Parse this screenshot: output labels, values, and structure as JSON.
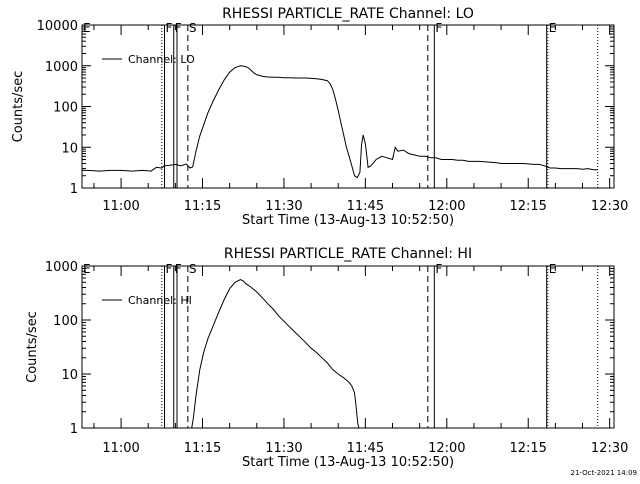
{
  "footer": {
    "timestamp": "21-Oct-2021 14:09"
  },
  "chart_data": [
    {
      "type": "line",
      "title": "RHESSI PARTICLE_RATE Channel: LO",
      "xlabel": "Start Time (13-Aug-13 10:52:50)",
      "ylabel": "Counts/sec",
      "yscale": "log",
      "ylim": [
        1,
        10000
      ],
      "xlim": [
        652.8,
        750.8
      ],
      "x_unit": "minutes after 00:00 UT",
      "x_ticks": [
        660,
        675,
        690,
        705,
        720,
        735,
        750
      ],
      "x_tick_labels": [
        "11:00",
        "11:15",
        "11:30",
        "11:45",
        "12:00",
        "12:15",
        "12:30"
      ],
      "y_ticks": [
        1,
        10,
        100,
        1000,
        10000
      ],
      "y_tick_labels": [
        "1",
        "10",
        "100",
        "1000",
        "10000"
      ],
      "legend": {
        "label": "Channel: LO",
        "position": "top-left"
      },
      "markers": [
        {
          "x": 652.8,
          "label": "E",
          "style": "dotted"
        },
        {
          "x": 667.5,
          "label": "",
          "style": "dotted"
        },
        {
          "x": 668.0,
          "label": "F",
          "style": "solid"
        },
        {
          "x": 669.7,
          "label": "F",
          "style": "solid"
        },
        {
          "x": 670.3,
          "label": "",
          "style": "solid"
        },
        {
          "x": 672.3,
          "label": "S",
          "style": "dashed"
        },
        {
          "x": 716.5,
          "label": "",
          "style": "dashed"
        },
        {
          "x": 717.7,
          "label": "F",
          "style": "solid"
        },
        {
          "x": 738.4,
          "label": "",
          "style": "solid"
        },
        {
          "x": 738.6,
          "label": "E",
          "style": "dotted"
        },
        {
          "x": 747.8,
          "label": "",
          "style": "dotted"
        }
      ],
      "series": [
        {
          "name": "Channel: LO",
          "points": [
            [
              652.8,
              2.7
            ],
            [
              654,
              2.7
            ],
            [
              656,
              2.6
            ],
            [
              658,
              2.7
            ],
            [
              660,
              2.7
            ],
            [
              662,
              2.6
            ],
            [
              664,
              2.7
            ],
            [
              665.5,
              2.6
            ],
            [
              666.5,
              3.2
            ],
            [
              667.5,
              3.1
            ],
            [
              668,
              3.5
            ],
            [
              669,
              3.6
            ],
            [
              670,
              3.8
            ],
            [
              671,
              3.5
            ],
            [
              672,
              3.9
            ],
            [
              672.7,
              3.1
            ],
            [
              673.2,
              3.3
            ],
            [
              673.8,
              8
            ],
            [
              674.5,
              19
            ],
            [
              675.2,
              35
            ],
            [
              676,
              70
            ],
            [
              677,
              140
            ],
            [
              678,
              260
            ],
            [
              679,
              450
            ],
            [
              680,
              700
            ],
            [
              681,
              900
            ],
            [
              681.5,
              950
            ],
            [
              682,
              1000
            ],
            [
              682.5,
              980
            ],
            [
              683,
              950
            ],
            [
              683.5,
              880
            ],
            [
              684,
              760
            ],
            [
              684.5,
              660
            ],
            [
              685,
              600
            ],
            [
              685.5,
              580
            ],
            [
              686,
              550
            ],
            [
              687,
              530
            ],
            [
              688,
              520
            ],
            [
              689,
              520
            ],
            [
              690,
              510
            ],
            [
              691,
              510
            ],
            [
              692,
              500
            ],
            [
              693,
              500
            ],
            [
              694,
              500
            ],
            [
              695,
              490
            ],
            [
              696,
              480
            ],
            [
              697,
              460
            ],
            [
              698,
              430
            ],
            [
              698.5,
              360
            ],
            [
              699,
              260
            ],
            [
              699.5,
              150
            ],
            [
              700,
              80
            ],
            [
              700.5,
              40
            ],
            [
              701,
              20
            ],
            [
              701.5,
              10
            ],
            [
              702,
              6
            ],
            [
              702.5,
              3.5
            ],
            [
              703,
              2
            ],
            [
              703.5,
              1.8
            ],
            [
              704,
              2.4
            ],
            [
              704.3,
              12
            ],
            [
              704.6,
              20
            ],
            [
              705,
              12
            ],
            [
              705.5,
              3.2
            ],
            [
              706,
              3.5
            ],
            [
              707,
              5
            ],
            [
              708,
              6
            ],
            [
              709,
              5.5
            ],
            [
              710,
              5
            ],
            [
              710.5,
              10
            ],
            [
              711,
              8
            ],
            [
              712,
              8.5
            ],
            [
              713,
              7
            ],
            [
              714,
              6.5
            ],
            [
              715,
              6
            ],
            [
              716,
              6
            ],
            [
              717,
              5.5
            ],
            [
              718,
              5.5
            ],
            [
              719,
              5
            ],
            [
              720,
              5
            ],
            [
              721,
              5
            ],
            [
              722,
              4.8
            ],
            [
              723,
              4.8
            ],
            [
              724,
              4.5
            ],
            [
              725,
              4.5
            ],
            [
              726,
              4.5
            ],
            [
              727,
              4.4
            ],
            [
              728,
              4.3
            ],
            [
              729,
              4.2
            ],
            [
              730,
              4
            ],
            [
              731,
              4
            ],
            [
              732,
              4
            ],
            [
              733,
              4
            ],
            [
              734,
              4
            ],
            [
              735,
              3.9
            ],
            [
              736,
              3.8
            ],
            [
              737,
              3.8
            ],
            [
              738,
              3.5
            ],
            [
              739,
              3.1
            ],
            [
              740,
              3.1
            ],
            [
              741,
              3
            ],
            [
              742,
              3
            ],
            [
              743,
              3
            ],
            [
              744,
              3
            ],
            [
              745,
              2.9
            ],
            [
              746,
              3
            ],
            [
              747,
              2.8
            ],
            [
              747.8,
              2.8
            ]
          ]
        }
      ]
    },
    {
      "type": "line",
      "title": "RHESSI PARTICLE_RATE Channel: HI",
      "xlabel": "Start Time (13-Aug-13 10:52:50)",
      "ylabel": "Counts/sec",
      "yscale": "log",
      "ylim": [
        1,
        1000
      ],
      "xlim": [
        652.8,
        750.8
      ],
      "x_unit": "minutes after 00:00 UT",
      "x_ticks": [
        660,
        675,
        690,
        705,
        720,
        735,
        750
      ],
      "x_tick_labels": [
        "11:00",
        "11:15",
        "11:30",
        "11:45",
        "12:00",
        "12:15",
        "12:30"
      ],
      "y_ticks": [
        1,
        10,
        100,
        1000
      ],
      "y_tick_labels": [
        "1",
        "10",
        "100",
        "1000"
      ],
      "legend": {
        "label": "Channel: HI",
        "position": "top-left"
      },
      "markers": [
        {
          "x": 652.8,
          "label": "E",
          "style": "dotted"
        },
        {
          "x": 667.5,
          "label": "",
          "style": "dotted"
        },
        {
          "x": 668.0,
          "label": "F",
          "style": "solid"
        },
        {
          "x": 669.7,
          "label": "F",
          "style": "solid"
        },
        {
          "x": 670.3,
          "label": "",
          "style": "solid"
        },
        {
          "x": 672.3,
          "label": "S",
          "style": "dashed"
        },
        {
          "x": 716.5,
          "label": "",
          "style": "dashed"
        },
        {
          "x": 717.7,
          "label": "F",
          "style": "solid"
        },
        {
          "x": 738.4,
          "label": "",
          "style": "solid"
        },
        {
          "x": 738.6,
          "label": "E",
          "style": "dotted"
        },
        {
          "x": 747.8,
          "label": "",
          "style": "dotted"
        }
      ],
      "series": [
        {
          "name": "Channel: HI",
          "points": [
            [
              673.0,
              1
            ],
            [
              673.3,
              1.5
            ],
            [
              673.8,
              4
            ],
            [
              674.5,
              12
            ],
            [
              675.2,
              25
            ],
            [
              676,
              45
            ],
            [
              677,
              80
            ],
            [
              678,
              140
            ],
            [
              679,
              240
            ],
            [
              680,
              380
            ],
            [
              681,
              500
            ],
            [
              682,
              560
            ],
            [
              682.5,
              530
            ],
            [
              683,
              470
            ],
            [
              684,
              400
            ],
            [
              685,
              330
            ],
            [
              686,
              260
            ],
            [
              687,
              200
            ],
            [
              688,
              160
            ],
            [
              689,
              120
            ],
            [
              690,
              95
            ],
            [
              691,
              75
            ],
            [
              692,
              60
            ],
            [
              693,
              48
            ],
            [
              694,
              38
            ],
            [
              695,
              30
            ],
            [
              696,
              25
            ],
            [
              697,
              20
            ],
            [
              698,
              16
            ],
            [
              699,
              12
            ],
            [
              700,
              10
            ],
            [
              701,
              8.5
            ],
            [
              702,
              7
            ],
            [
              702.5,
              6
            ],
            [
              703,
              4.5
            ],
            [
              703.3,
              2.5
            ],
            [
              703.6,
              1.2
            ],
            [
              703.8,
              1
            ]
          ]
        }
      ]
    }
  ]
}
